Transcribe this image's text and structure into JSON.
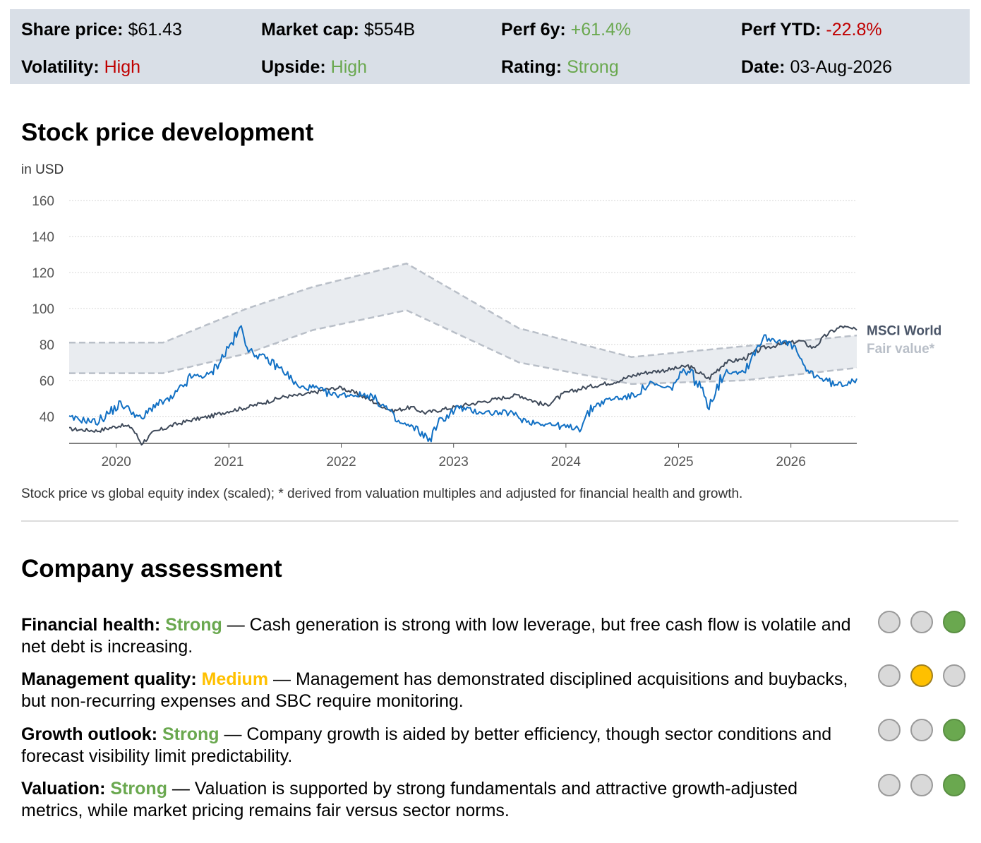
{
  "stats": {
    "share_price": {
      "label": "Share price:",
      "value": "$61.43"
    },
    "market_cap": {
      "label": "Market cap:",
      "value": "$554B"
    },
    "perf_6y": {
      "label": "Perf 6y:",
      "value": "+61.4%"
    },
    "perf_ytd": {
      "label": "Perf YTD:",
      "value": "-22.8%"
    },
    "volatility": {
      "label": "Volatility:",
      "value": "High"
    },
    "upside": {
      "label": "Upside:",
      "value": "High"
    },
    "rating": {
      "label": "Rating:",
      "value": "Strong"
    },
    "date": {
      "label": "Date:",
      "value": "03-Aug-2026"
    }
  },
  "chart_section": {
    "title": "Stock price development",
    "subtitle": "in USD",
    "caption": "Stock price vs global equity index (scaled); * derived from valuation multiples and adjusted for financial health and growth."
  },
  "chart_data": {
    "type": "line",
    "ylim": [
      25,
      160
    ],
    "yticks": [
      40,
      60,
      80,
      100,
      120,
      140,
      160
    ],
    "xlim": [
      "2019-08-01",
      "2026-08-03"
    ],
    "xticks": [
      "2020",
      "2021",
      "2022",
      "2023",
      "2024",
      "2025",
      "2026"
    ],
    "grid": true,
    "colors": {
      "stock": "#1170c4",
      "index": "#3f4a5a",
      "fair_value": "#b9bfc8",
      "band": "#e9ecf0"
    },
    "series": [
      {
        "key": "stock",
        "x": [
          "2019-08-01",
          "2019-11-01",
          "2020-01-15",
          "2020-02-20",
          "2020-03-23",
          "2020-05-01",
          "2020-07-01",
          "2020-09-01",
          "2020-11-01",
          "2020-12-15",
          "2021-02-10",
          "2021-03-10",
          "2021-05-01",
          "2021-07-01",
          "2021-08-15",
          "2021-10-01",
          "2021-12-01",
          "2022-02-01",
          "2022-04-01",
          "2022-06-01",
          "2022-07-01",
          "2022-09-01",
          "2022-10-15",
          "2022-11-15",
          "2023-01-15",
          "2023-03-01",
          "2023-05-01",
          "2023-07-01",
          "2023-09-01",
          "2023-11-01",
          "2024-01-01",
          "2024-02-15",
          "2024-04-01",
          "2024-06-01",
          "2024-08-01",
          "2024-10-01",
          "2024-12-01",
          "2025-02-01",
          "2025-04-10",
          "2025-06-01",
          "2025-08-01",
          "2025-10-01",
          "2025-12-01",
          "2026-01-15",
          "2026-02-15",
          "2026-04-01",
          "2026-06-01",
          "2026-08-03"
        ],
        "values": [
          39,
          37,
          47,
          43,
          38,
          46,
          50,
          62,
          63,
          74,
          89,
          76,
          72,
          65,
          56,
          56,
          52,
          52,
          52,
          44,
          37,
          33,
          27,
          37,
          45,
          43,
          42,
          42,
          37,
          36,
          34,
          34,
          46,
          50,
          51,
          58,
          55,
          67,
          47,
          65,
          65,
          84,
          82,
          78,
          66,
          62,
          57,
          61
        ]
      },
      {
        "name": "MSCI World",
        "key": "index",
        "x": [
          "2019-08-01",
          "2019-11-01",
          "2020-01-15",
          "2020-02-20",
          "2020-03-23",
          "2020-05-01",
          "2020-07-01",
          "2020-09-01",
          "2020-11-01",
          "2021-01-01",
          "2021-03-01",
          "2021-05-01",
          "2021-07-01",
          "2021-09-01",
          "2021-11-15",
          "2022-01-01",
          "2022-03-01",
          "2022-05-01",
          "2022-06-15",
          "2022-08-15",
          "2022-10-01",
          "2022-12-01",
          "2023-03-01",
          "2023-06-01",
          "2023-08-01",
          "2023-10-25",
          "2024-01-01",
          "2024-03-01",
          "2024-06-01",
          "2024-09-01",
          "2024-12-01",
          "2025-02-01",
          "2025-04-08",
          "2025-06-01",
          "2025-08-01",
          "2025-10-01",
          "2025-12-01",
          "2026-02-01",
          "2026-03-15",
          "2026-05-01",
          "2026-06-15",
          "2026-08-03"
        ],
        "values": [
          33,
          32,
          35,
          34,
          25,
          31,
          35,
          38,
          40,
          43,
          45,
          48,
          51,
          52,
          55,
          56,
          52,
          47,
          43,
          45,
          42,
          44,
          47,
          50,
          52,
          46,
          53,
          56,
          59,
          64,
          66,
          68,
          61,
          70,
          72,
          78,
          80,
          82,
          78,
          86,
          90,
          88
        ]
      },
      {
        "name": "Fair value*",
        "key": "fair_upper",
        "x": [
          "2019-08-01",
          "2020-06-01",
          "2021-03-01",
          "2021-10-01",
          "2022-08-01",
          "2023-08-01",
          "2024-08-01",
          "2025-08-01",
          "2026-08-03"
        ],
        "values": [
          81,
          81,
          100,
          112,
          125,
          89,
          73,
          79,
          85
        ]
      },
      {
        "key": "fair_lower",
        "x": [
          "2019-08-01",
          "2020-06-01",
          "2021-03-01",
          "2021-10-01",
          "2022-08-01",
          "2023-08-01",
          "2024-08-01",
          "2025-08-01",
          "2026-08-03"
        ],
        "values": [
          64,
          64,
          75,
          88,
          99,
          70,
          58,
          60,
          67
        ]
      }
    ],
    "legend_labels": {
      "index": "MSCI World",
      "fair_value": "Fair value*"
    }
  },
  "assessment": {
    "title": "Company assessment",
    "items": [
      {
        "label": "Financial health:",
        "rating": "Strong",
        "rating_color": "#6aa84f",
        "text": " — Cash generation is strong with low leverage, but free cash flow is volatile and net debt is increasing.",
        "dots": [
          0,
          0,
          1
        ],
        "active_color": "green"
      },
      {
        "label": "Management quality:",
        "rating": "Medium",
        "rating_color": "#ffc000",
        "text": " — Management has demonstrated disciplined acquisitions and buybacks, but non-recurring expenses and SBC require monitoring.",
        "dots": [
          0,
          1,
          0
        ],
        "active_color": "yellow"
      },
      {
        "label": "Growth outlook:",
        "rating": "Strong",
        "rating_color": "#6aa84f",
        "text": " — Company growth is aided by better efficiency, though sector conditions and forecast visibility limit predictability.",
        "dots": [
          0,
          0,
          1
        ],
        "active_color": "green"
      },
      {
        "label": "Valuation:",
        "rating": "Strong",
        "rating_color": "#6aa84f",
        "text": " — Valuation is supported by strong fundamentals and attractive growth-adjusted metrics, while market pricing remains fair versus sector norms.",
        "dots": [
          0,
          0,
          1
        ],
        "active_color": "green"
      }
    ]
  }
}
